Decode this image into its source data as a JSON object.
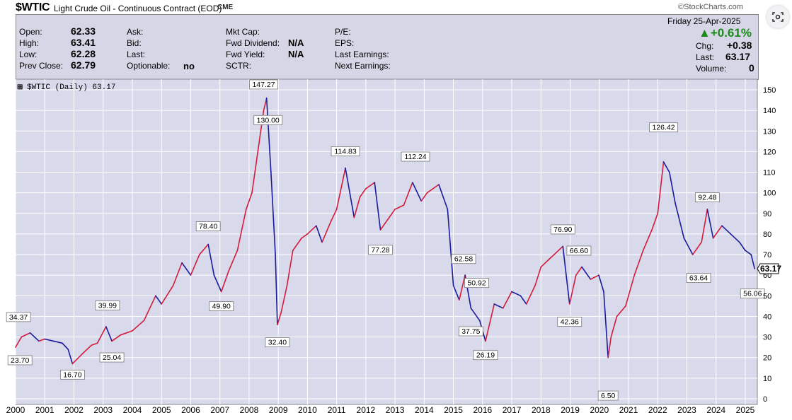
{
  "header": {
    "symbol": "$WTIC",
    "description": "Light Crude Oil - Continuous Contract (EOD)",
    "exchange": "CME",
    "brand": "©StockCharts.com"
  },
  "info": {
    "open_label": "Open:",
    "open": "62.33",
    "high_label": "High:",
    "high": "63.41",
    "low_label": "Low:",
    "low": "62.28",
    "prevclose_label": "Prev Close:",
    "prevclose": "62.79",
    "ask_label": "Ask:",
    "bid_label": "Bid:",
    "last_label": "Last:",
    "optionable_label": "Optionable:",
    "optionable": "no",
    "mktcap_label": "Mkt Cap:",
    "fwddiv_label": "Fwd Dividend:",
    "fwddiv": "N/A",
    "fwdyield_label": "Fwd Yield:",
    "fwdyield": "N/A",
    "sctr_label": "SCTR:",
    "pe_label": "P/E:",
    "eps_label": "EPS:",
    "lastearn_label": "Last Earnings:",
    "nextearn_label": "Next Earnings:",
    "date": "Friday  25-Apr-2025",
    "pct_change": "▲+0.61%",
    "chg_label": "Chg:",
    "chg": "+0.38",
    "last2_label": "Last:",
    "last2": "63.17",
    "volume_label": "Volume:",
    "volume": "0"
  },
  "colors": {
    "plot_bg": "#d9d9ec",
    "up": "#d41a3c",
    "down": "#1a1a9c",
    "grid": "#ffffff",
    "panel": "#d6d6e6"
  },
  "chart_data": {
    "type": "line",
    "legend": "$WTIC (Daily) 63.17",
    "ylim": [
      0,
      155
    ],
    "yticks": [
      0,
      10,
      20,
      30,
      40,
      50,
      60,
      70,
      80,
      90,
      100,
      110,
      120,
      130,
      140,
      150
    ],
    "xticks": [
      "2000",
      "2001",
      "2002",
      "2003",
      "2004",
      "2005",
      "2006",
      "2007",
      "2008",
      "2009",
      "2010",
      "2011",
      "2012",
      "2013",
      "2014",
      "2015",
      "2016",
      "2017",
      "2018",
      "2019",
      "2020",
      "2021",
      "2022",
      "2023",
      "2024",
      "2025"
    ],
    "last_value": "63.17",
    "series": [
      {
        "x": [
          2000.0,
          2000.2,
          2000.5,
          2000.8,
          2001.0,
          2001.3,
          2001.6,
          2001.8,
          2001.95,
          2002.3,
          2002.6,
          2002.8,
          2003.1,
          2003.3,
          2003.6,
          2004.0,
          2004.4,
          2004.8,
          2005.0,
          2005.4,
          2005.7,
          2006.0,
          2006.3,
          2006.6,
          2006.8,
          2007.05,
          2007.3,
          2007.6,
          2007.9,
          2008.1,
          2008.3,
          2008.5,
          2008.6,
          2008.75,
          2008.9,
          2008.97,
          2009.1,
          2009.3,
          2009.5,
          2009.8,
          2010.0,
          2010.3,
          2010.5,
          2010.8,
          2011.0,
          2011.3,
          2011.6,
          2011.8,
          2012.0,
          2012.3,
          2012.5,
          2012.8,
          2013.0,
          2013.3,
          2013.6,
          2013.9,
          2014.1,
          2014.5,
          2014.8,
          2015.0,
          2015.2,
          2015.4,
          2015.6,
          2015.9,
          2016.1,
          2016.4,
          2016.7,
          2017.0,
          2017.3,
          2017.5,
          2017.8,
          2018.0,
          2018.3,
          2018.75,
          2018.98,
          2019.2,
          2019.4,
          2019.7,
          2019.98,
          2020.15,
          2020.3,
          2020.4,
          2020.6,
          2020.9,
          2021.2,
          2021.5,
          2021.8,
          2022.0,
          2022.2,
          2022.4,
          2022.6,
          2022.9,
          2023.2,
          2023.5,
          2023.7,
          2023.9,
          2024.2,
          2024.5,
          2024.8,
          2025.0,
          2025.2,
          2025.32
        ],
        "y": [
          25,
          30,
          32,
          28,
          29,
          28,
          27,
          24,
          17,
          22,
          26,
          27,
          35,
          28,
          31,
          33,
          38,
          50,
          46,
          55,
          66,
          60,
          70,
          75,
          60,
          52,
          62,
          72,
          92,
          100,
          120,
          140,
          146,
          110,
          70,
          36,
          42,
          55,
          72,
          78,
          80,
          84,
          76,
          86,
          92,
          112,
          88,
          98,
          102,
          105,
          82,
          88,
          92,
          94,
          105,
          96,
          100,
          104,
          92,
          55,
          48,
          60,
          44,
          38,
          28,
          46,
          44,
          52,
          50,
          46,
          55,
          64,
          68,
          74,
          46,
          60,
          64,
          58,
          60,
          52,
          20,
          30,
          40,
          45,
          60,
          72,
          82,
          90,
          115,
          110,
          95,
          78,
          70,
          76,
          92,
          78,
          84,
          80,
          76,
          72,
          70,
          63.17
        ]
      }
    ],
    "annotations": [
      {
        "label": "34.37",
        "x": 2000.1,
        "y": 34.37,
        "pos": "above"
      },
      {
        "label": "23.70",
        "x": 2000.15,
        "y": 23.7,
        "pos": "below"
      },
      {
        "label": "16.70",
        "x": 2001.95,
        "y": 16.7,
        "pos": "below"
      },
      {
        "label": "39.99",
        "x": 2003.15,
        "y": 39.99,
        "pos": "above"
      },
      {
        "label": "25.04",
        "x": 2003.3,
        "y": 25.04,
        "pos": "below"
      },
      {
        "label": "78.40",
        "x": 2006.6,
        "y": 78.4,
        "pos": "above"
      },
      {
        "label": "49.90",
        "x": 2007.05,
        "y": 49.9,
        "pos": "below"
      },
      {
        "label": "147.27",
        "x": 2008.5,
        "y": 147.27,
        "pos": "above"
      },
      {
        "label": "130.00",
        "x": 2008.65,
        "y": 130.0,
        "pos": "above"
      },
      {
        "label": "32.40",
        "x": 2008.97,
        "y": 32.4,
        "pos": "below"
      },
      {
        "label": "114.83",
        "x": 2011.3,
        "y": 114.83,
        "pos": "above"
      },
      {
        "label": "77.28",
        "x": 2012.5,
        "y": 77.28,
        "pos": "below"
      },
      {
        "label": "112.24",
        "x": 2013.7,
        "y": 112.24,
        "pos": "above"
      },
      {
        "label": "62.58",
        "x": 2015.35,
        "y": 62.58,
        "pos": "above"
      },
      {
        "label": "50.92",
        "x": 2015.8,
        "y": 50.92,
        "pos": "above"
      },
      {
        "label": "37.75",
        "x": 2015.6,
        "y": 37.75,
        "pos": "below"
      },
      {
        "label": "26.19",
        "x": 2016.1,
        "y": 26.19,
        "pos": "below"
      },
      {
        "label": "76.90",
        "x": 2018.75,
        "y": 76.9,
        "pos": "above"
      },
      {
        "label": "66.60",
        "x": 2019.3,
        "y": 66.6,
        "pos": "above"
      },
      {
        "label": "42.36",
        "x": 2018.98,
        "y": 42.36,
        "pos": "below"
      },
      {
        "label": "6.50",
        "x": 2020.3,
        "y": 6.5,
        "pos": "below"
      },
      {
        "label": "126.42",
        "x": 2022.2,
        "y": 126.42,
        "pos": "above"
      },
      {
        "label": "92.48",
        "x": 2023.7,
        "y": 92.48,
        "pos": "above"
      },
      {
        "label": "63.64",
        "x": 2023.4,
        "y": 63.64,
        "pos": "below"
      },
      {
        "label": "56.06",
        "x": 2025.25,
        "y": 56.06,
        "pos": "below"
      }
    ]
  }
}
